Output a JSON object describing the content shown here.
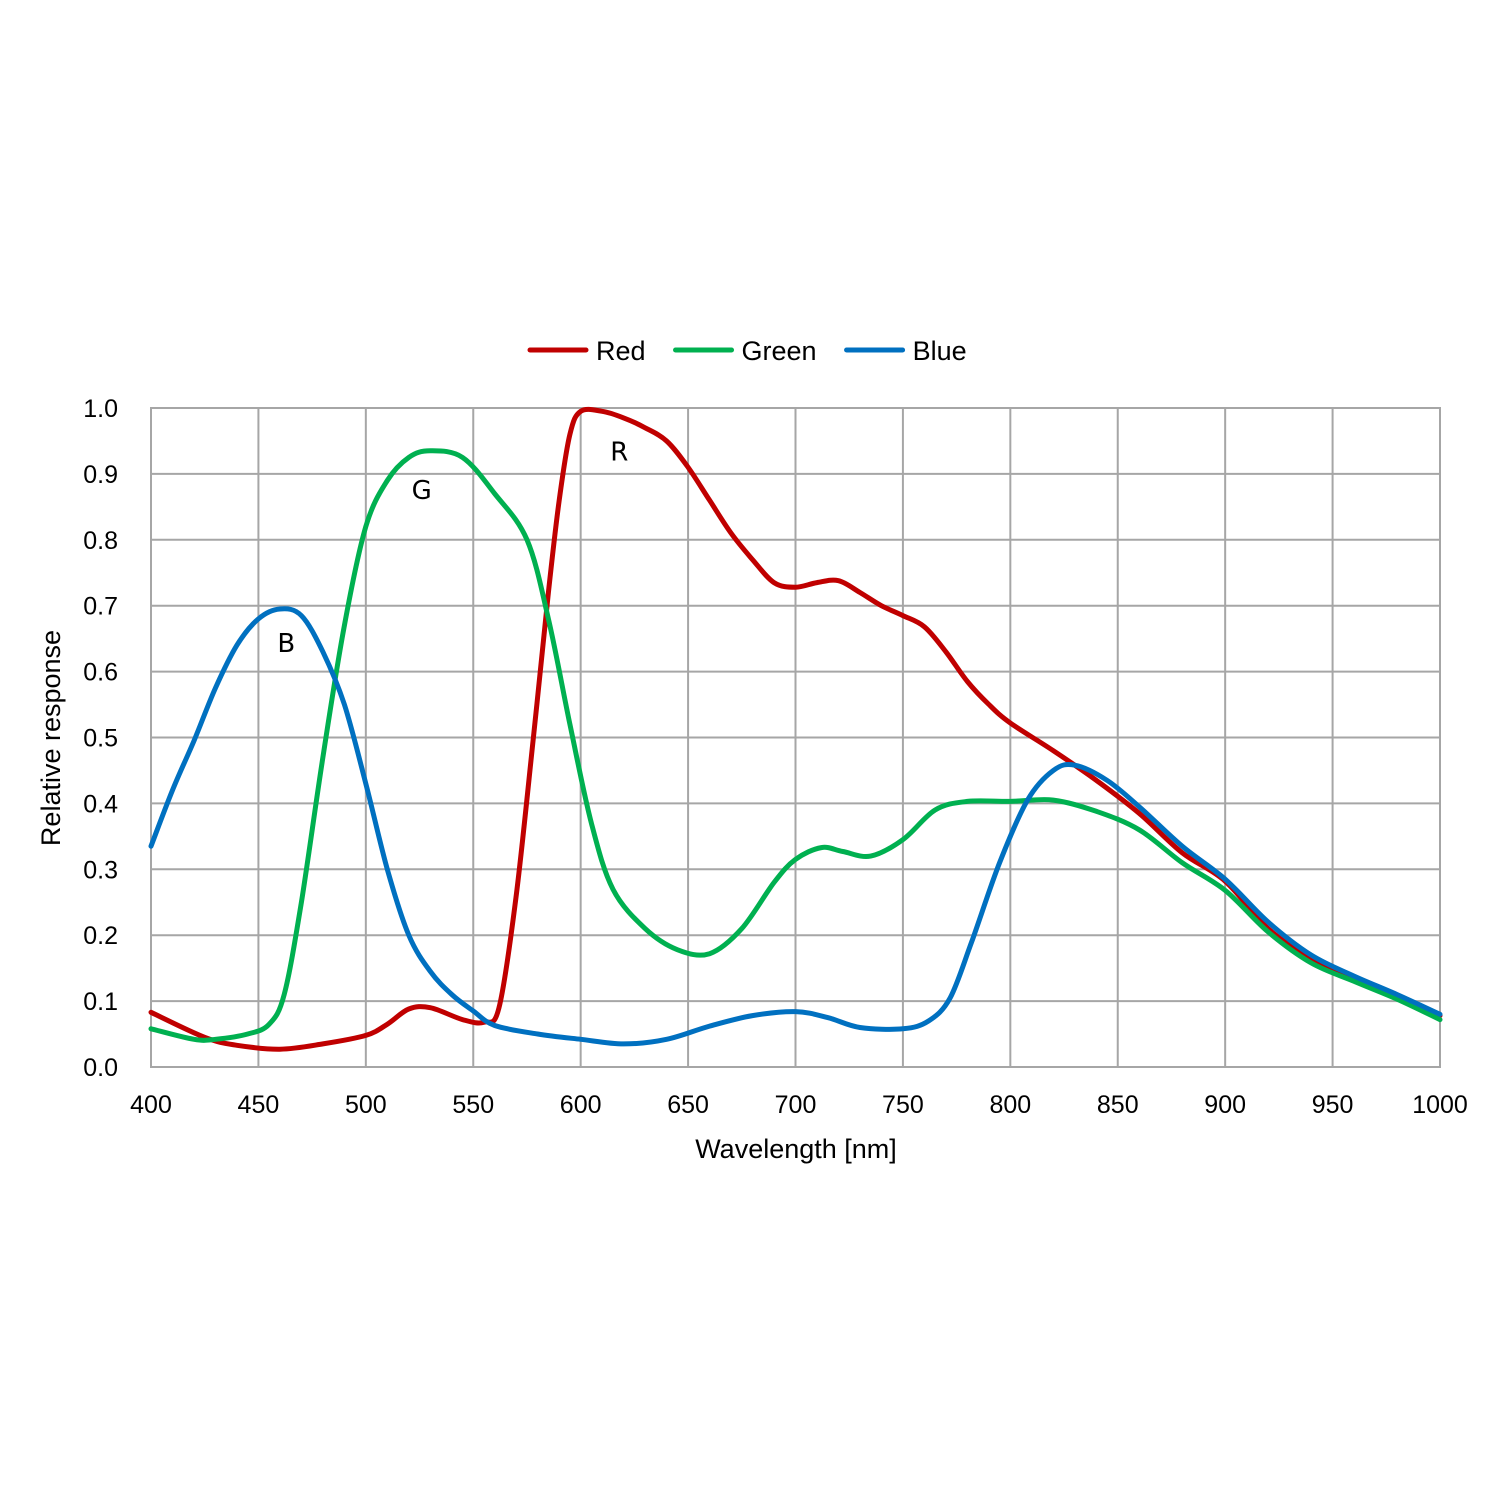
{
  "chart_data": {
    "type": "line",
    "xlabel": "Wavelength [nm]",
    "ylabel": "Relative response",
    "xlim": [
      400,
      1000
    ],
    "ylim": [
      0,
      1.0
    ],
    "xticks": [
      "400",
      "450",
      "500",
      "550",
      "600",
      "650",
      "700",
      "750",
      "800",
      "850",
      "900",
      "950",
      "1000"
    ],
    "yticks": [
      "0.0",
      "0.1",
      "0.2",
      "0.3",
      "0.4",
      "0.5",
      "0.6",
      "0.7",
      "0.8",
      "0.9",
      "1.0"
    ],
    "grid": true,
    "legend_position": "top-center",
    "series": [
      {
        "name": "Red",
        "color": "#c00000",
        "points": [
          [
            400,
            0.083
          ],
          [
            425,
            0.045
          ],
          [
            440,
            0.033
          ],
          [
            460,
            0.027
          ],
          [
            480,
            0.035
          ],
          [
            500,
            0.048
          ],
          [
            510,
            0.065
          ],
          [
            520,
            0.088
          ],
          [
            530,
            0.09
          ],
          [
            545,
            0.072
          ],
          [
            555,
            0.068
          ],
          [
            562,
            0.09
          ],
          [
            570,
            0.26
          ],
          [
            578,
            0.5
          ],
          [
            585,
            0.72
          ],
          [
            590,
            0.86
          ],
          [
            595,
            0.96
          ],
          [
            600,
            0.995
          ],
          [
            610,
            0.995
          ],
          [
            620,
            0.985
          ],
          [
            630,
            0.97
          ],
          [
            640,
            0.95
          ],
          [
            650,
            0.91
          ],
          [
            660,
            0.86
          ],
          [
            670,
            0.81
          ],
          [
            680,
            0.77
          ],
          [
            690,
            0.735
          ],
          [
            700,
            0.728
          ],
          [
            710,
            0.735
          ],
          [
            720,
            0.738
          ],
          [
            730,
            0.72
          ],
          [
            740,
            0.7
          ],
          [
            750,
            0.685
          ],
          [
            760,
            0.668
          ],
          [
            770,
            0.63
          ],
          [
            780,
            0.585
          ],
          [
            790,
            0.55
          ],
          [
            800,
            0.522
          ],
          [
            820,
            0.48
          ],
          [
            840,
            0.435
          ],
          [
            860,
            0.385
          ],
          [
            880,
            0.325
          ],
          [
            900,
            0.282
          ],
          [
            920,
            0.21
          ],
          [
            940,
            0.165
          ],
          [
            960,
            0.135
          ],
          [
            980,
            0.108
          ],
          [
            1000,
            0.078
          ]
        ]
      },
      {
        "name": "Green",
        "color": "#00b050",
        "points": [
          [
            400,
            0.058
          ],
          [
            420,
            0.042
          ],
          [
            430,
            0.042
          ],
          [
            445,
            0.05
          ],
          [
            455,
            0.065
          ],
          [
            462,
            0.11
          ],
          [
            470,
            0.25
          ],
          [
            480,
            0.47
          ],
          [
            490,
            0.67
          ],
          [
            500,
            0.82
          ],
          [
            510,
            0.89
          ],
          [
            520,
            0.925
          ],
          [
            530,
            0.935
          ],
          [
            545,
            0.925
          ],
          [
            560,
            0.87
          ],
          [
            575,
            0.8
          ],
          [
            585,
            0.68
          ],
          [
            595,
            0.52
          ],
          [
            605,
            0.37
          ],
          [
            615,
            0.27
          ],
          [
            630,
            0.21
          ],
          [
            645,
            0.178
          ],
          [
            660,
            0.172
          ],
          [
            675,
            0.21
          ],
          [
            690,
            0.28
          ],
          [
            700,
            0.315
          ],
          [
            712,
            0.333
          ],
          [
            722,
            0.327
          ],
          [
            735,
            0.32
          ],
          [
            750,
            0.345
          ],
          [
            765,
            0.39
          ],
          [
            780,
            0.403
          ],
          [
            800,
            0.403
          ],
          [
            820,
            0.405
          ],
          [
            840,
            0.388
          ],
          [
            860,
            0.36
          ],
          [
            880,
            0.31
          ],
          [
            900,
            0.268
          ],
          [
            920,
            0.205
          ],
          [
            940,
            0.158
          ],
          [
            960,
            0.13
          ],
          [
            980,
            0.103
          ],
          [
            1000,
            0.072
          ]
        ]
      },
      {
        "name": "Blue",
        "color": "#0070c0",
        "points": [
          [
            400,
            0.335
          ],
          [
            410,
            0.42
          ],
          [
            420,
            0.495
          ],
          [
            430,
            0.575
          ],
          [
            440,
            0.64
          ],
          [
            450,
            0.68
          ],
          [
            460,
            0.695
          ],
          [
            470,
            0.685
          ],
          [
            480,
            0.63
          ],
          [
            490,
            0.55
          ],
          [
            500,
            0.43
          ],
          [
            510,
            0.3
          ],
          [
            520,
            0.2
          ],
          [
            530,
            0.145
          ],
          [
            540,
            0.11
          ],
          [
            550,
            0.085
          ],
          [
            560,
            0.063
          ],
          [
            580,
            0.05
          ],
          [
            600,
            0.042
          ],
          [
            620,
            0.035
          ],
          [
            640,
            0.042
          ],
          [
            660,
            0.062
          ],
          [
            680,
            0.078
          ],
          [
            700,
            0.084
          ],
          [
            715,
            0.075
          ],
          [
            730,
            0.06
          ],
          [
            750,
            0.058
          ],
          [
            762,
            0.07
          ],
          [
            772,
            0.105
          ],
          [
            782,
            0.19
          ],
          [
            795,
            0.31
          ],
          [
            808,
            0.405
          ],
          [
            820,
            0.45
          ],
          [
            830,
            0.458
          ],
          [
            845,
            0.435
          ],
          [
            860,
            0.395
          ],
          [
            880,
            0.335
          ],
          [
            900,
            0.285
          ],
          [
            920,
            0.22
          ],
          [
            940,
            0.17
          ],
          [
            960,
            0.138
          ],
          [
            980,
            0.11
          ],
          [
            1000,
            0.08
          ]
        ]
      }
    ],
    "annotations": [
      {
        "text": "R",
        "x": 618,
        "y": 0.92
      },
      {
        "text": "G",
        "x": 526,
        "y": 0.862
      },
      {
        "text": "B",
        "x": 463,
        "y": 0.63
      }
    ]
  }
}
